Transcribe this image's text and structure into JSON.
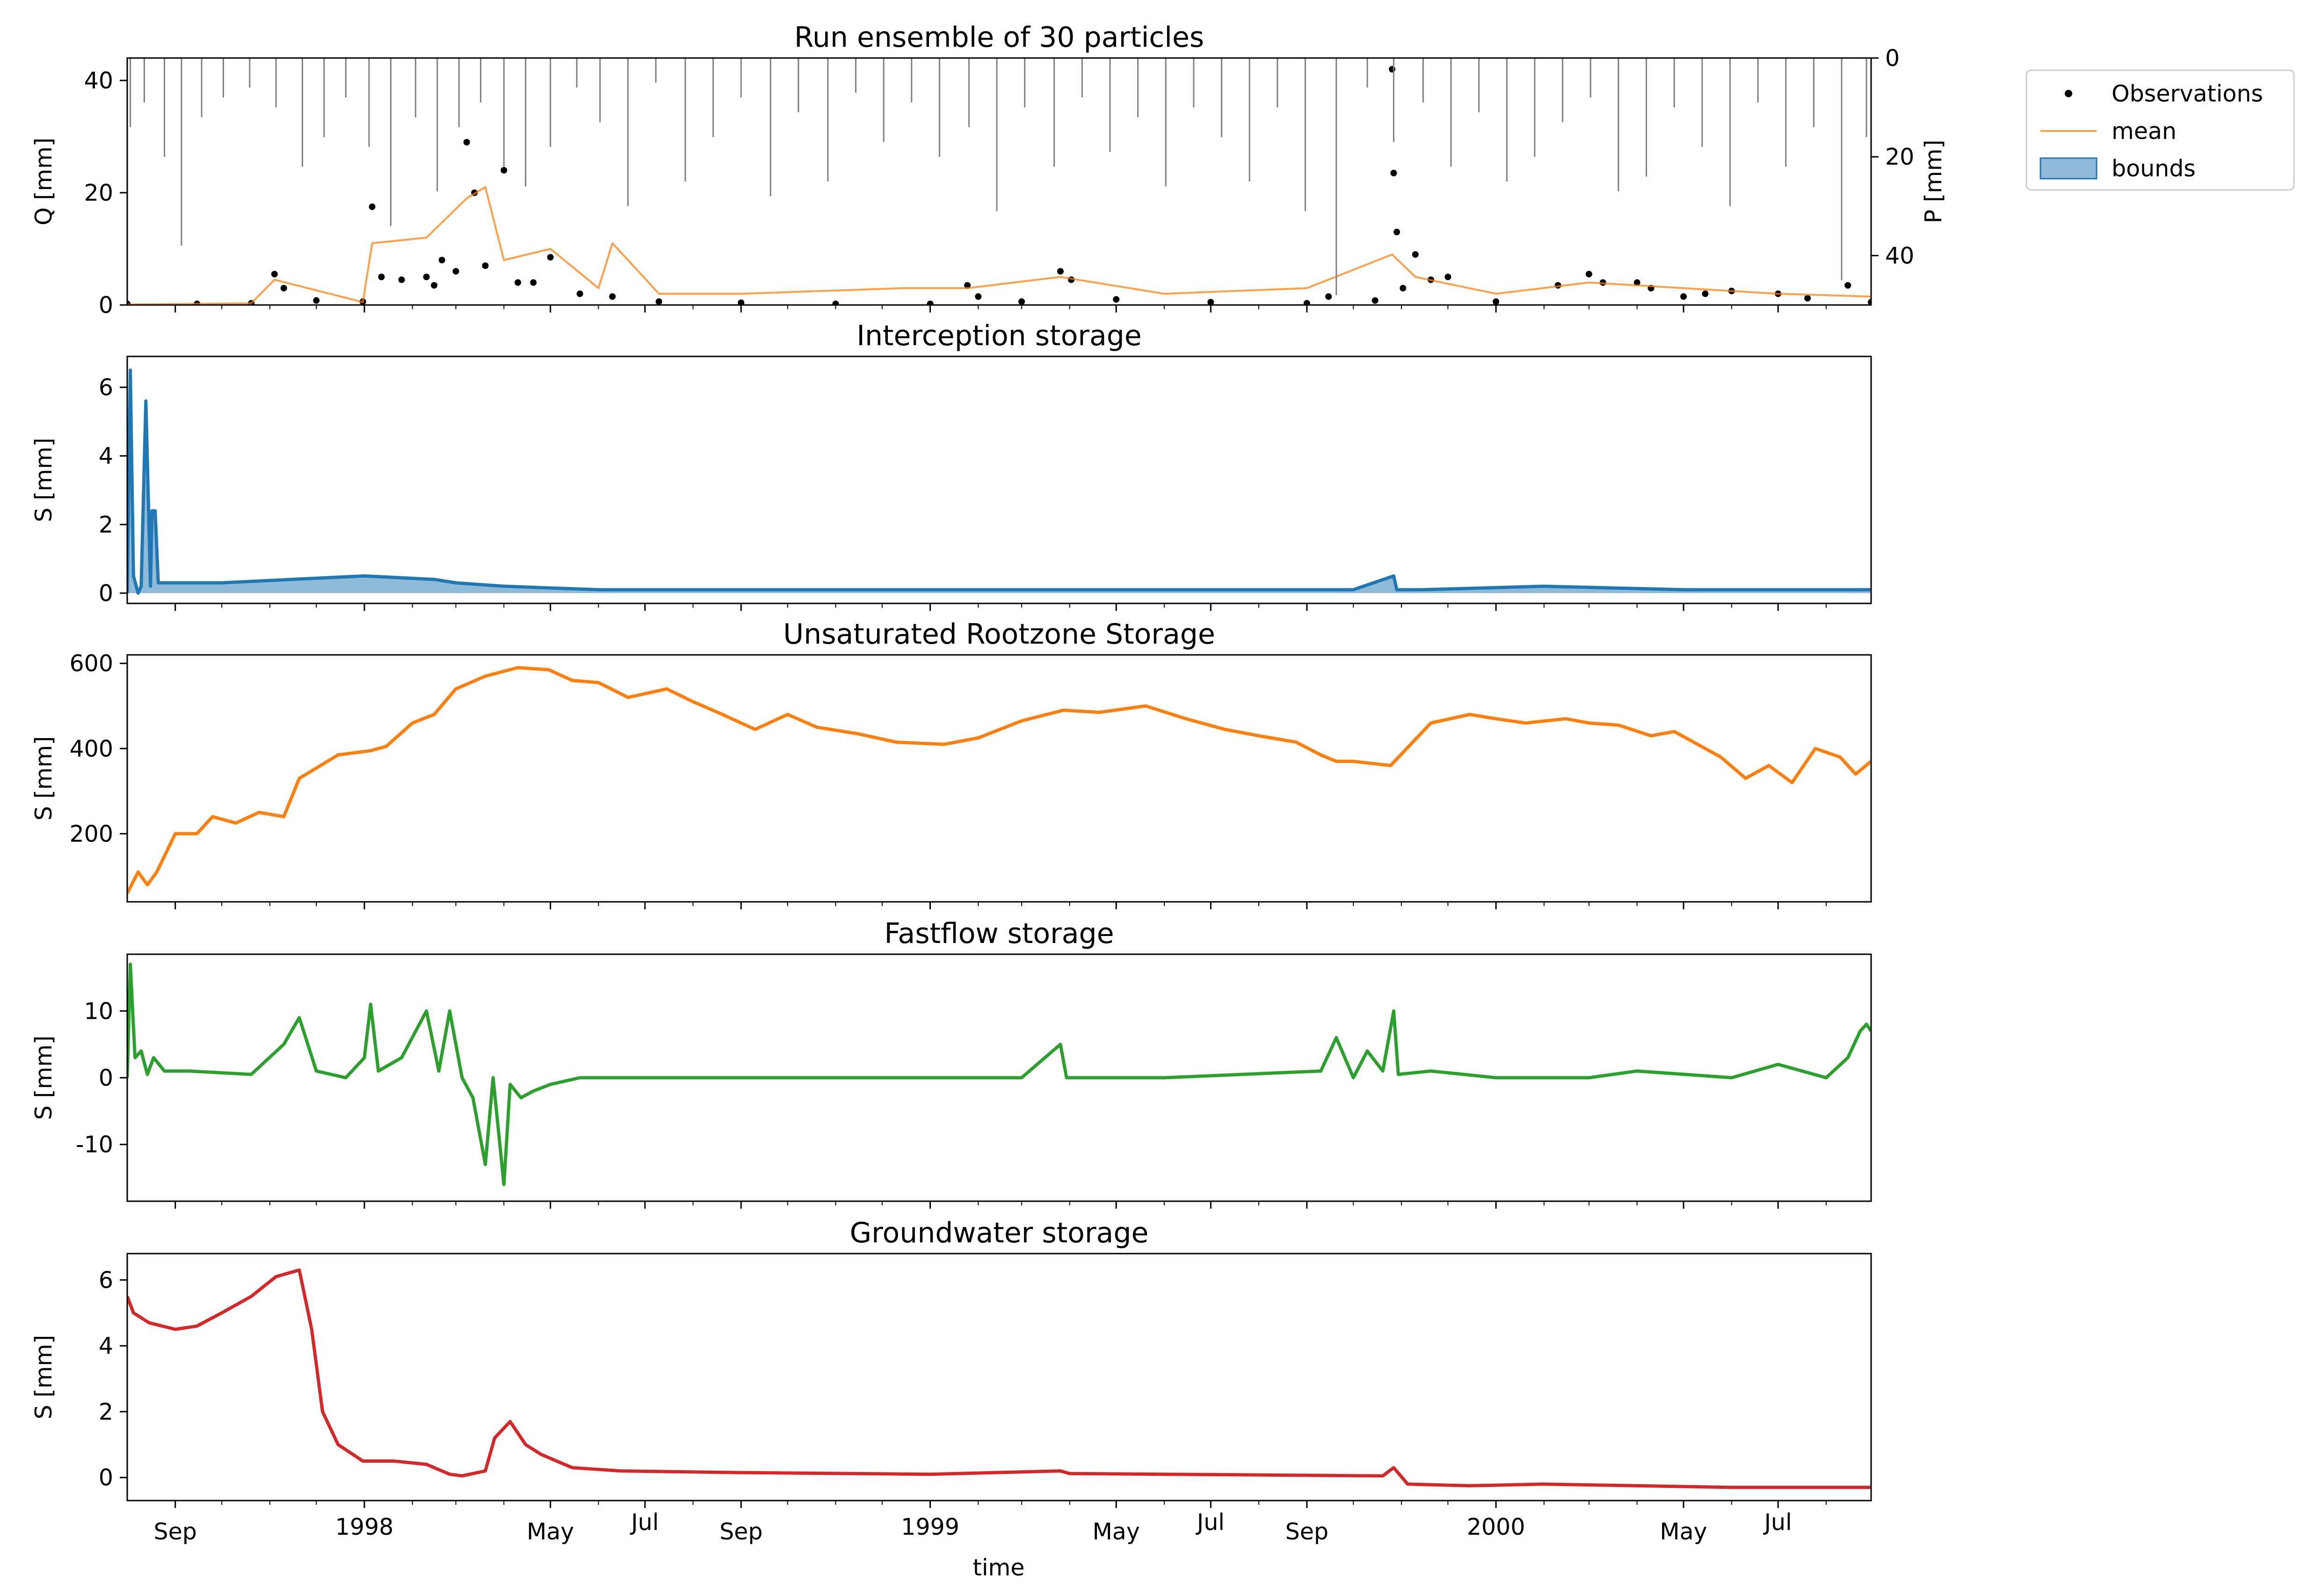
{
  "chart_data": [
    {
      "type": "line",
      "title": "Run ensemble of 30 particles",
      "ylabel": "Q [mm]",
      "ylabel_right": "P [mm]",
      "ylim": [
        0,
        44
      ],
      "yticks": [
        0,
        20,
        40
      ],
      "y2lim": [
        50,
        0
      ],
      "y2ticks": [
        0,
        20,
        40
      ],
      "y2_inverted": true,
      "legend_position": "outside-top-right",
      "legend": [
        {
          "label": "Observations",
          "kind": "marker",
          "color": "#000000"
        },
        {
          "label": "mean",
          "kind": "line",
          "color": "#ff7f0e"
        },
        {
          "label": "bounds",
          "kind": "patch",
          "color": "#1f77b4"
        }
      ],
      "series": [
        {
          "name": "Observations",
          "color": "#000000",
          "style": "dots",
          "x": [
            "1997-08-01",
            "1997-09-15",
            "1997-10-20",
            "1997-11-04",
            "1997-11-10",
            "1997-12-01",
            "1997-12-31",
            "1998-01-06",
            "1998-01-12",
            "1998-01-25",
            "1998-02-10",
            "1998-02-15",
            "1998-02-20",
            "1998-03-01",
            "1998-03-08",
            "1998-03-13",
            "1998-03-20",
            "1998-04-01",
            "1998-04-10",
            "1998-04-20",
            "1998-05-01",
            "1998-05-20",
            "1998-06-10",
            "1998-07-10",
            "1998-09-01",
            "1998-11-01",
            "1999-01-01",
            "1999-01-25",
            "1999-02-01",
            "1999-03-01",
            "1999-03-26",
            "1999-04-02",
            "1999-05-01",
            "1999-07-01",
            "1999-09-01",
            "1999-09-15",
            "1999-10-15",
            "1999-10-26",
            "1999-10-27",
            "1999-10-29",
            "1999-11-02",
            "1999-11-10",
            "1999-11-20",
            "1999-12-01",
            "2000-01-01",
            "2000-02-10",
            "2000-03-01",
            "2000-03-10",
            "2000-04-01",
            "2000-04-10",
            "2000-05-01",
            "2000-05-15",
            "2000-06-01",
            "2000-07-01",
            "2000-07-20",
            "2000-08-15",
            "2000-08-30"
          ],
          "y": [
            0.2,
            0.2,
            0.3,
            5.5,
            3,
            0.8,
            0.6,
            17.5,
            5,
            4.5,
            5,
            3.5,
            8,
            6,
            29,
            20,
            7,
            24,
            4,
            4,
            8.5,
            2,
            1.5,
            0.6,
            0.4,
            0.2,
            0.2,
            3.5,
            1.5,
            0.6,
            6,
            4.5,
            1,
            0.5,
            0.3,
            1.5,
            0.8,
            42,
            23.5,
            13,
            3,
            9,
            4.5,
            5,
            0.6,
            3.5,
            5.5,
            4,
            4,
            3,
            1.5,
            2,
            2.5,
            2,
            1.2,
            3.5,
            0.5
          ]
        },
        {
          "name": "mean",
          "color": "#ff7f0e",
          "x": [
            "1997-08-01",
            "1997-10-20",
            "1997-11-04",
            "1997-12-31",
            "1998-01-06",
            "1998-02-10",
            "1998-03-08",
            "1998-03-20",
            "1998-04-01",
            "1998-05-01",
            "1998-06-01",
            "1998-06-10",
            "1998-07-10",
            "1998-09-01",
            "1998-12-15",
            "1999-01-25",
            "1999-03-26",
            "1999-06-01",
            "1999-09-01",
            "1999-10-26",
            "1999-11-10",
            "2000-01-01",
            "2000-03-01",
            "2000-05-01",
            "2000-07-01",
            "2000-08-30"
          ],
          "y": [
            0.1,
            0.3,
            4.5,
            0.5,
            11,
            12,
            19,
            21,
            8,
            10,
            3,
            11,
            2,
            2,
            3,
            3,
            5,
            2,
            3,
            9,
            5,
            2,
            4,
            3,
            2,
            1.5
          ]
        },
        {
          "name": "P",
          "color": "#808080",
          "axis": "right",
          "style": "inverted-bars",
          "x": [
            "1997-08-03",
            "1997-08-12",
            "1997-08-25",
            "1997-09-05",
            "1997-09-18",
            "1997-10-02",
            "1997-10-19",
            "1997-11-05",
            "1997-11-22",
            "1997-12-06",
            "1997-12-20",
            "1998-01-04",
            "1998-01-18",
            "1998-02-03",
            "1998-02-17",
            "1998-03-03",
            "1998-03-17",
            "1998-04-01",
            "1998-04-15",
            "1998-05-01",
            "1998-05-18",
            "1998-06-02",
            "1998-06-20",
            "1998-07-08",
            "1998-07-27",
            "1998-08-14",
            "1998-09-01",
            "1998-09-20",
            "1998-10-08",
            "1998-10-27",
            "1998-11-14",
            "1998-12-02",
            "1998-12-20",
            "1999-01-07",
            "1999-01-26",
            "1999-02-13",
            "1999-03-03",
            "1999-03-22",
            "1999-04-09",
            "1999-04-27",
            "1999-05-15",
            "1999-06-02",
            "1999-06-20",
            "1999-07-08",
            "1999-07-26",
            "1999-08-13",
            "1999-08-31",
            "1999-09-20",
            "1999-10-10",
            "1999-10-27",
            "1999-11-15",
            "1999-12-03",
            "1999-12-21",
            "2000-01-08",
            "2000-01-26",
            "2000-02-13",
            "2000-03-02",
            "2000-03-20",
            "2000-04-07",
            "2000-04-25",
            "2000-05-13",
            "2000-05-31",
            "2000-06-18",
            "2000-07-06",
            "2000-07-24",
            "2000-08-11",
            "2000-08-27"
          ],
          "y": [
            14,
            9,
            20,
            38,
            12,
            8,
            6,
            10,
            22,
            16,
            8,
            18,
            34,
            12,
            27,
            14,
            9,
            22,
            26,
            18,
            6,
            13,
            30,
            5,
            25,
            16,
            8,
            28,
            11,
            25,
            7,
            17,
            9,
            20,
            14,
            31,
            10,
            22,
            8,
            19,
            12,
            26,
            10,
            16,
            25,
            10,
            31,
            48,
            6,
            17,
            9,
            22,
            11,
            25,
            20,
            13,
            8,
            27,
            24,
            10,
            18,
            30,
            9,
            22,
            14,
            45,
            16
          ]
        }
      ]
    },
    {
      "type": "area",
      "title": "Interception storage",
      "ylabel": "S [mm]",
      "ylim": [
        -0.3,
        6.9
      ],
      "yticks": [
        0,
        2,
        4,
        6
      ],
      "series": [
        {
          "name": "",
          "color": "#1f77b4",
          "x": [
            "1997-08-01",
            "1997-08-03",
            "1997-08-05",
            "1997-08-08",
            "1997-08-10",
            "1997-08-13",
            "1997-08-16",
            "1997-08-17",
            "1997-08-19",
            "1997-08-21",
            "1997-09-01",
            "1997-10-01",
            "1997-11-15",
            "1998-01-01",
            "1998-02-15",
            "1998-03-01",
            "1998-04-01",
            "1998-06-01",
            "1998-09-01",
            "1999-01-01",
            "1999-06-01",
            "1999-10-01",
            "1999-10-27",
            "1999-10-29",
            "1999-11-15",
            "2000-02-01",
            "2000-05-01",
            "2000-08-30"
          ],
          "y": [
            0,
            6.5,
            0.5,
            0,
            0.2,
            5.6,
            0.2,
            2.4,
            2.4,
            0.3,
            0.3,
            0.3,
            0.4,
            0.5,
            0.4,
            0.3,
            0.2,
            0.1,
            0.1,
            0.1,
            0.1,
            0.1,
            0.5,
            0.1,
            0.1,
            0.2,
            0.1,
            0.1
          ]
        }
      ]
    },
    {
      "type": "line",
      "title": "Unsaturated Rootzone Storage",
      "ylabel": "S [mm]",
      "ylim": [
        40,
        620
      ],
      "yticks": [
        200,
        400,
        600
      ],
      "series": [
        {
          "name": "",
          "color": "#ff7f0e",
          "x": [
            "1997-08-01",
            "1997-08-08",
            "1997-08-14",
            "1997-08-20",
            "1997-09-01",
            "1997-09-15",
            "1997-09-25",
            "1997-10-10",
            "1997-10-25",
            "1997-11-10",
            "1997-11-20",
            "1997-12-15",
            "1998-01-05",
            "1998-01-15",
            "1998-02-01",
            "1998-02-15",
            "1998-03-01",
            "1998-03-20",
            "1998-04-10",
            "1998-04-30",
            "1998-05-15",
            "1998-06-01",
            "1998-06-20",
            "1998-07-15",
            "1998-08-01",
            "1998-08-20",
            "1998-09-10",
            "1998-10-01",
            "1998-10-20",
            "1998-11-15",
            "1998-12-10",
            "1999-01-10",
            "1999-02-01",
            "1999-03-01",
            "1999-03-28",
            "1999-04-20",
            "1999-05-20",
            "1999-06-15",
            "1999-07-10",
            "1999-08-01",
            "1999-08-25",
            "1999-09-10",
            "1999-09-20",
            "1999-10-01",
            "1999-10-25",
            "1999-11-20",
            "1999-12-15",
            "2000-01-01",
            "2000-01-20",
            "2000-02-15",
            "2000-03-01",
            "2000-03-20",
            "2000-04-10",
            "2000-04-25",
            "2000-05-10",
            "2000-05-25",
            "2000-06-10",
            "2000-06-25",
            "2000-07-10",
            "2000-07-25",
            "2000-08-10",
            "2000-08-20",
            "2000-08-30"
          ],
          "y": [
            60,
            110,
            80,
            110,
            200,
            200,
            240,
            225,
            250,
            240,
            330,
            385,
            395,
            405,
            460,
            480,
            540,
            570,
            590,
            585,
            560,
            555,
            520,
            540,
            510,
            480,
            445,
            480,
            450,
            435,
            415,
            410,
            425,
            465,
            490,
            485,
            500,
            470,
            445,
            430,
            415,
            385,
            370,
            370,
            360,
            460,
            480,
            470,
            460,
            470,
            460,
            455,
            430,
            440,
            410,
            380,
            330,
            360,
            320,
            400,
            380,
            340,
            370
          ]
        }
      ]
    },
    {
      "type": "line",
      "title": "Fastflow storage",
      "ylabel": "S [mm]",
      "ylim": [
        -18.5,
        18.5
      ],
      "yticks": [
        -10,
        0,
        10
      ],
      "series": [
        {
          "name": "",
          "color": "#2ca02c",
          "x": [
            "1997-08-01",
            "1997-08-03",
            "1997-08-06",
            "1997-08-10",
            "1997-08-14",
            "1997-08-18",
            "1997-08-25",
            "1997-09-10",
            "1997-10-20",
            "1997-11-10",
            "1997-11-20",
            "1997-12-01",
            "1997-12-20",
            "1998-01-01",
            "1998-01-05",
            "1998-01-10",
            "1998-01-25",
            "1998-02-10",
            "1998-02-18",
            "1998-02-25",
            "1998-03-05",
            "1998-03-12",
            "1998-03-20",
            "1998-03-25",
            "1998-04-01",
            "1998-04-05",
            "1998-04-12",
            "1998-04-20",
            "1998-05-01",
            "1998-05-20",
            "1998-06-10",
            "1998-07-15",
            "1998-09-01",
            "1999-01-01",
            "1999-03-01",
            "1999-03-26",
            "1999-03-30",
            "1999-06-01",
            "1999-09-10",
            "1999-09-20",
            "1999-10-01",
            "1999-10-10",
            "1999-10-20",
            "1999-10-27",
            "1999-10-30",
            "1999-11-20",
            "2000-01-01",
            "2000-03-01",
            "2000-04-01",
            "2000-06-01",
            "2000-07-01",
            "2000-08-01",
            "2000-08-15",
            "2000-08-23",
            "2000-08-27",
            "2000-08-30"
          ],
          "y": [
            0,
            17,
            3,
            4,
            0.5,
            3,
            1,
            1,
            0.5,
            5,
            9,
            1,
            0,
            3,
            11,
            1,
            3,
            10,
            1,
            10,
            0,
            -3,
            -13,
            0,
            -16,
            -1,
            -3,
            -2,
            -1,
            0,
            0,
            0,
            0,
            0,
            0,
            5,
            0,
            0,
            1,
            6,
            0,
            4,
            1,
            10,
            0.5,
            1,
            0,
            0,
            1,
            0,
            2,
            0,
            3,
            7,
            8,
            7
          ]
        }
      ]
    },
    {
      "type": "line",
      "title": "Groundwater storage",
      "ylabel": "S [mm]",
      "xlabel": "time",
      "ylim": [
        -0.7,
        6.8
      ],
      "yticks": [
        0,
        2,
        4,
        6
      ],
      "xticks_major": [
        {
          "x": "1997-09-01",
          "label": "Sep"
        },
        {
          "x": "1998-01-01",
          "label": "1998"
        },
        {
          "x": "1998-05-01",
          "label": "May"
        },
        {
          "x": "1998-07-01",
          "label": "Jul"
        },
        {
          "x": "1998-09-01",
          "label": "Sep"
        },
        {
          "x": "1999-01-01",
          "label": "1999"
        },
        {
          "x": "1999-05-01",
          "label": "May"
        },
        {
          "x": "1999-07-01",
          "label": "Jul"
        },
        {
          "x": "1999-09-01",
          "label": "Sep"
        },
        {
          "x": "2000-01-01",
          "label": "2000"
        },
        {
          "x": "2000-05-01",
          "label": "May"
        },
        {
          "x": "2000-07-01",
          "label": "Jul"
        }
      ],
      "xlim": [
        "1997-08-01",
        "2000-08-30"
      ],
      "series": [
        {
          "name": "",
          "color": "#d62728",
          "x": [
            "1997-08-01",
            "1997-08-05",
            "1997-08-15",
            "1997-09-01",
            "1997-09-15",
            "1997-10-01",
            "1997-10-20",
            "1997-11-05",
            "1997-11-20",
            "1997-11-28",
            "1997-12-05",
            "1997-12-15",
            "1997-12-31",
            "1998-01-20",
            "1998-02-10",
            "1998-02-25",
            "1998-03-05",
            "1998-03-20",
            "1998-03-26",
            "1998-04-05",
            "1998-04-15",
            "1998-04-25",
            "1998-05-15",
            "1998-06-15",
            "1998-09-01",
            "1999-01-01",
            "1999-03-26",
            "1999-04-01",
            "1999-06-01",
            "1999-10-20",
            "1999-10-27",
            "1999-11-05",
            "1999-12-15",
            "2000-02-01",
            "2000-04-01",
            "2000-06-01",
            "2000-08-30"
          ],
          "y": [
            5.5,
            5,
            4.7,
            4.5,
            4.6,
            5.0,
            5.5,
            6.1,
            6.3,
            4.5,
            2.0,
            1.0,
            0.5,
            0.5,
            0.4,
            0.1,
            0.05,
            0.2,
            1.2,
            1.7,
            1.0,
            0.7,
            0.3,
            0.2,
            0.15,
            0.1,
            0.2,
            0.12,
            0.1,
            0.05,
            0.3,
            -0.2,
            -0.25,
            -0.2,
            -0.25,
            -0.3,
            -0.3
          ]
        }
      ]
    }
  ]
}
